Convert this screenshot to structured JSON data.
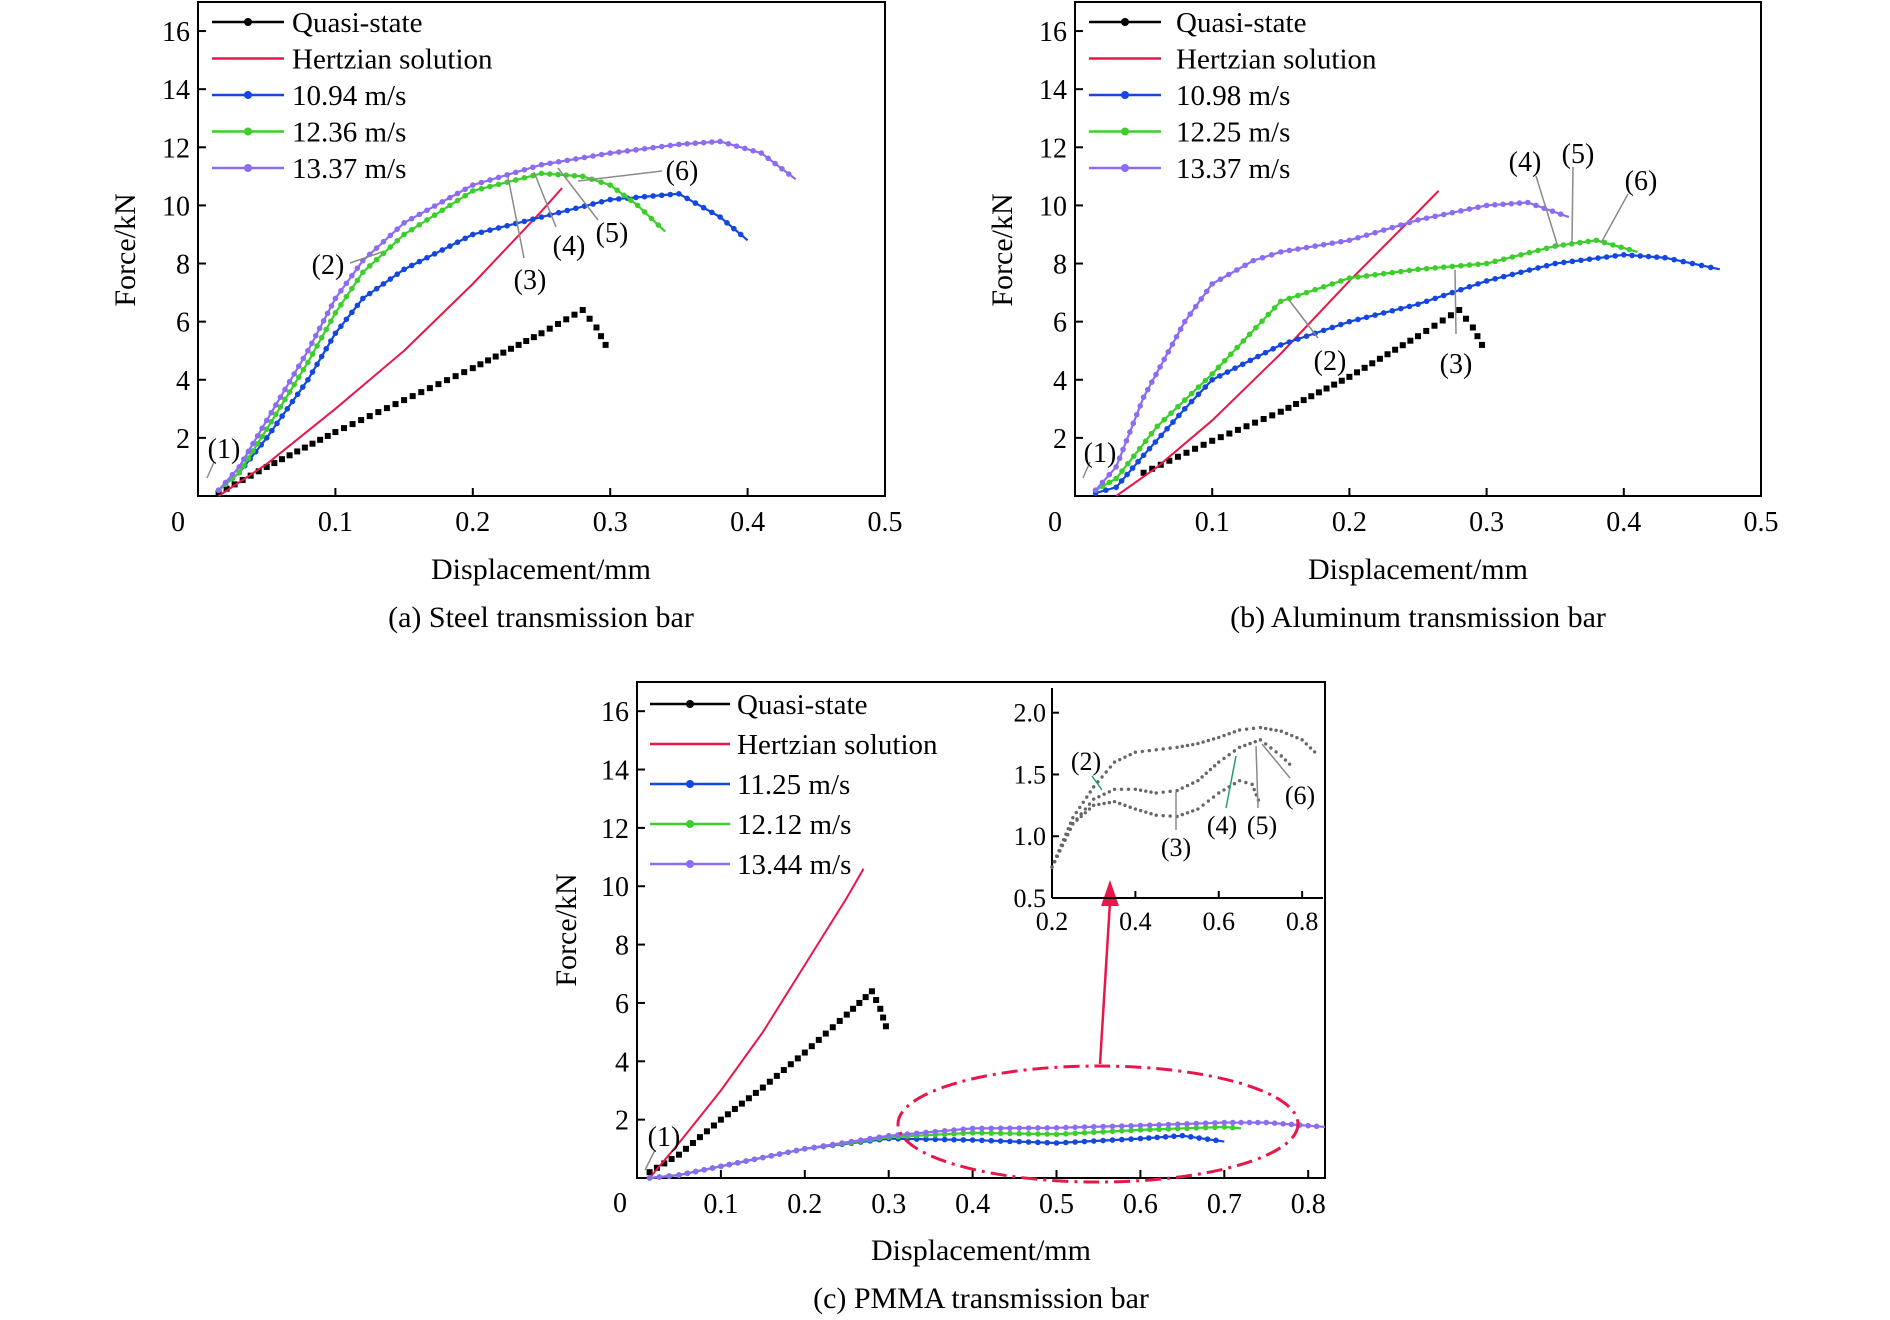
{
  "colors": {
    "quasi": "#000000",
    "hertz": "#e8174a",
    "v1": "#1446e0",
    "v2": "#3ccf2c",
    "v3": "#8c6cf2",
    "label_gray": "#8a8a8a",
    "label_green": "#22a06a",
    "callout": "#e8174a"
  },
  "chart_data": [
    {
      "type": "line",
      "caption": "(a) Steel transmission bar",
      "xlabel": "Displacement/mm",
      "ylabel": "Force/kN",
      "xlim": [
        0,
        0.5
      ],
      "ylim": [
        0,
        17
      ],
      "xticks": [
        "0",
        "0.1",
        "0.2",
        "0.3",
        "0.4",
        "0.5"
      ],
      "yticks": [
        "2",
        "4",
        "6",
        "8",
        "10",
        "12",
        "14",
        "16"
      ],
      "legend_position": "top-left",
      "series": [
        {
          "name": "Quasi-state",
          "key": "quasi",
          "marker": "square",
          "x": [
            0.015,
            0.05,
            0.1,
            0.15,
            0.2,
            0.25,
            0.28,
            0.29,
            0.3
          ],
          "y": [
            0.1,
            1.0,
            2.2,
            3.3,
            4.4,
            5.6,
            6.4,
            5.8,
            4.9
          ]
        },
        {
          "name": "Hertzian solution",
          "key": "hertz",
          "marker": "none",
          "x": [
            0.015,
            0.05,
            0.1,
            0.15,
            0.2,
            0.25,
            0.265
          ],
          "y": [
            0.0,
            1.1,
            3.0,
            5.0,
            7.3,
            9.8,
            10.6
          ]
        },
        {
          "name": "10.94 m/s",
          "key": "v1",
          "marker": "circle",
          "x": [
            0.015,
            0.03,
            0.05,
            0.08,
            0.1,
            0.12,
            0.15,
            0.2,
            0.25,
            0.3,
            0.35,
            0.38,
            0.4
          ],
          "y": [
            0.2,
            0.8,
            2.0,
            4.0,
            5.6,
            6.8,
            7.8,
            9.0,
            9.6,
            10.2,
            10.4,
            9.6,
            8.8
          ]
        },
        {
          "name": "12.36 m/s",
          "key": "v2",
          "marker": "circle",
          "x": [
            0.015,
            0.03,
            0.05,
            0.08,
            0.1,
            0.12,
            0.15,
            0.2,
            0.25,
            0.28,
            0.3,
            0.32,
            0.34
          ],
          "y": [
            0.2,
            0.8,
            2.3,
            4.6,
            6.3,
            7.7,
            9.0,
            10.5,
            11.1,
            11.0,
            10.7,
            10.0,
            9.1
          ]
        },
        {
          "name": "13.37 m/s",
          "key": "v3",
          "marker": "circle",
          "x": [
            0.015,
            0.03,
            0.05,
            0.08,
            0.1,
            0.12,
            0.15,
            0.2,
            0.25,
            0.3,
            0.35,
            0.38,
            0.41,
            0.435
          ],
          "y": [
            0.2,
            1.0,
            2.6,
            5.0,
            6.8,
            8.1,
            9.4,
            10.7,
            11.4,
            11.8,
            12.1,
            12.2,
            11.8,
            10.9
          ]
        }
      ],
      "annotations": [
        "(1)",
        "(2)",
        "(3)",
        "(4)",
        "(5)",
        "(6)"
      ]
    },
    {
      "type": "line",
      "caption": "(b) Aluminum transmission bar",
      "xlabel": "Displacement/mm",
      "ylabel": "Force/kN",
      "xlim": [
        0,
        0.5
      ],
      "ylim": [
        0,
        17
      ],
      "xticks": [
        "0",
        "0.1",
        "0.2",
        "0.3",
        "0.4",
        "0.5"
      ],
      "yticks": [
        "2",
        "4",
        "6",
        "8",
        "10",
        "12",
        "14",
        "16"
      ],
      "legend_position": "top-left",
      "series": [
        {
          "name": "Quasi-state",
          "key": "quasi",
          "marker": "square",
          "x": [
            0.05,
            0.1,
            0.15,
            0.2,
            0.25,
            0.28,
            0.29,
            0.3
          ],
          "y": [
            0.8,
            1.9,
            2.9,
            4.1,
            5.5,
            6.4,
            5.8,
            4.9
          ]
        },
        {
          "name": "Hertzian solution",
          "key": "hertz",
          "marker": "none",
          "x": [
            0.03,
            0.06,
            0.1,
            0.15,
            0.2,
            0.24,
            0.265
          ],
          "y": [
            0.0,
            1.0,
            2.6,
            4.9,
            7.4,
            9.3,
            10.5
          ]
        },
        {
          "name": "10.98 m/s",
          "key": "v1",
          "marker": "circle",
          "x": [
            0.015,
            0.03,
            0.05,
            0.08,
            0.1,
            0.15,
            0.2,
            0.25,
            0.3,
            0.35,
            0.4,
            0.43,
            0.47
          ],
          "y": [
            0.1,
            0.3,
            1.4,
            3.0,
            4.0,
            5.2,
            6.0,
            6.6,
            7.4,
            8.0,
            8.3,
            8.2,
            7.8
          ]
        },
        {
          "name": "12.25 m/s",
          "key": "v2",
          "marker": "circle",
          "x": [
            0.015,
            0.03,
            0.06,
            0.1,
            0.15,
            0.2,
            0.25,
            0.3,
            0.35,
            0.38,
            0.41
          ],
          "y": [
            0.2,
            0.6,
            2.4,
            4.2,
            6.7,
            7.5,
            7.8,
            8.0,
            8.6,
            8.8,
            8.4
          ]
        },
        {
          "name": "13.37 m/s",
          "key": "v3",
          "marker": "circle",
          "x": [
            0.015,
            0.03,
            0.05,
            0.08,
            0.1,
            0.13,
            0.15,
            0.2,
            0.25,
            0.3,
            0.33,
            0.36
          ],
          "y": [
            0.2,
            1.0,
            3.4,
            6.0,
            7.3,
            8.1,
            8.4,
            8.8,
            9.5,
            10.0,
            10.1,
            9.6
          ]
        }
      ],
      "annotations": [
        "(1)",
        "(2)",
        "(3)",
        "(4)",
        "(5)",
        "(6)"
      ]
    },
    {
      "type": "line",
      "caption": "(c) PMMA transmission bar",
      "xlabel": "Displacement/mm",
      "ylabel": "Force/kN",
      "xlim": [
        0,
        0.82
      ],
      "ylim": [
        0,
        17
      ],
      "xticks": [
        "0",
        "0.1",
        "0.2",
        "0.3",
        "0.4",
        "0.5",
        "0.6",
        "0.7",
        "0.8"
      ],
      "yticks": [
        "2",
        "4",
        "6",
        "8",
        "10",
        "12",
        "14",
        "16"
      ],
      "legend_position": "top-left",
      "series": [
        {
          "name": "Quasi-state",
          "key": "quasi",
          "marker": "square",
          "x": [
            0.015,
            0.05,
            0.1,
            0.15,
            0.2,
            0.25,
            0.28,
            0.29,
            0.3
          ],
          "y": [
            0.2,
            0.8,
            2.0,
            3.1,
            4.3,
            5.6,
            6.4,
            5.8,
            4.9
          ]
        },
        {
          "name": "Hertzian solution",
          "key": "hertz",
          "marker": "none",
          "x": [
            0.015,
            0.05,
            0.1,
            0.15,
            0.2,
            0.25,
            0.27
          ],
          "y": [
            0.0,
            1.2,
            3.0,
            5.0,
            7.3,
            9.6,
            10.6
          ]
        },
        {
          "name": "11.25 m/s",
          "key": "v1",
          "marker": "circle",
          "x": [
            0.015,
            0.05,
            0.1,
            0.2,
            0.3,
            0.4,
            0.5,
            0.6,
            0.65,
            0.7
          ],
          "y": [
            0.0,
            0.1,
            0.4,
            1.0,
            1.35,
            1.3,
            1.2,
            1.35,
            1.45,
            1.25
          ]
        },
        {
          "name": "12.12 m/s",
          "key": "v2",
          "marker": "circle",
          "x": [
            0.015,
            0.05,
            0.1,
            0.2,
            0.3,
            0.4,
            0.5,
            0.6,
            0.7,
            0.72
          ],
          "y": [
            0.0,
            0.1,
            0.4,
            1.0,
            1.4,
            1.55,
            1.5,
            1.65,
            1.75,
            1.7
          ]
        },
        {
          "name": "13.44 m/s",
          "key": "v3",
          "marker": "circle",
          "x": [
            0.015,
            0.05,
            0.1,
            0.2,
            0.3,
            0.4,
            0.5,
            0.6,
            0.7,
            0.75,
            0.82
          ],
          "y": [
            0.0,
            0.1,
            0.4,
            1.0,
            1.45,
            1.7,
            1.72,
            1.8,
            1.9,
            1.9,
            1.75
          ]
        }
      ],
      "annotations": [
        "(1)"
      ]
    }
  ],
  "inset": {
    "xlim": [
      0.2,
      0.85
    ],
    "ylim": [
      0.5,
      2.2
    ],
    "xticks": [
      "0.2",
      "0.4",
      "0.6",
      "0.8"
    ],
    "yticks": [
      "0.5",
      "1.0",
      "1.5",
      "2.0"
    ],
    "series": [
      {
        "key": "quasi",
        "x": [
          0.2,
          0.25,
          0.3,
          0.35,
          0.4,
          0.45,
          0.5,
          0.55,
          0.6,
          0.65,
          0.68,
          0.7
        ],
        "y": [
          0.75,
          1.1,
          1.25,
          1.28,
          1.22,
          1.17,
          1.16,
          1.22,
          1.35,
          1.45,
          1.42,
          1.25
        ]
      },
      {
        "key": "quasi",
        "x": [
          0.2,
          0.25,
          0.3,
          0.35,
          0.4,
          0.45,
          0.5,
          0.55,
          0.6,
          0.65,
          0.7,
          0.75,
          0.78
        ],
        "y": [
          0.75,
          1.1,
          1.3,
          1.38,
          1.38,
          1.35,
          1.37,
          1.45,
          1.6,
          1.72,
          1.78,
          1.65,
          1.55
        ]
      },
      {
        "key": "quasi",
        "x": [
          0.2,
          0.25,
          0.3,
          0.35,
          0.4,
          0.45,
          0.5,
          0.55,
          0.6,
          0.65,
          0.7,
          0.75,
          0.8,
          0.84
        ],
        "y": [
          0.75,
          1.15,
          1.4,
          1.6,
          1.68,
          1.7,
          1.72,
          1.75,
          1.8,
          1.86,
          1.88,
          1.85,
          1.78,
          1.65
        ]
      }
    ],
    "annotations": [
      "(2)",
      "(3)",
      "(4)",
      "(5)",
      "(6)"
    ]
  }
}
